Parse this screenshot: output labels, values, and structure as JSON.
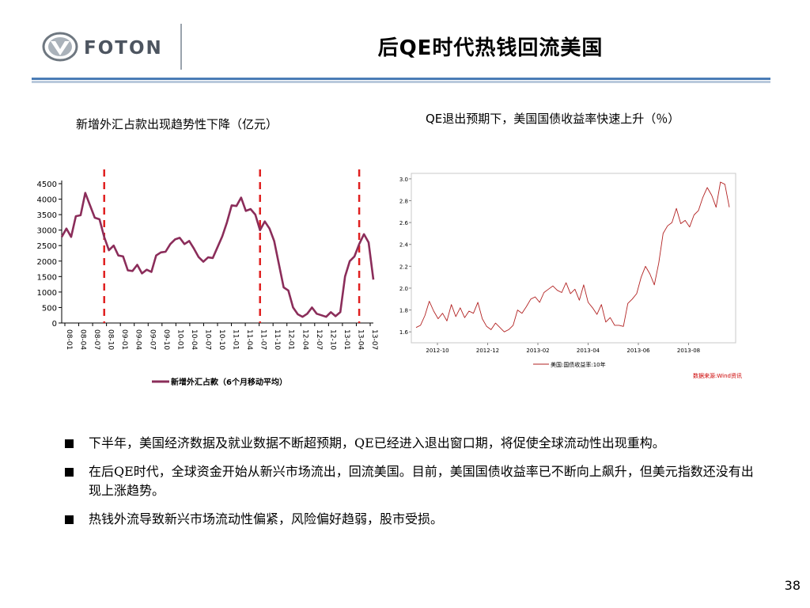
{
  "header": {
    "logo_text": "FOTON",
    "title": "后QE时代热钱回流美国"
  },
  "left_caption": "新增外汇占款出现趋势性下降（亿元）",
  "right_caption": "QE退出预期下，美国国债收益率快速上升（％）",
  "bullets": [
    "下半年，美国经济数据及就业数据不断超预期，QE已经进入退出窗口期，将促使全球流动性出现重构。",
    "在后QE时代，全球资金开始从新兴市场流出，回流美国。目前，美国国债收益率已不断向上飙升，但美元指数还没有出现上涨趋势。",
    "热钱外流导致新兴市场流动性偏紧，风险偏好趋弱，股市受损。"
  ],
  "page_number": "38",
  "colors": {
    "accent_blue": "#4a7cb6",
    "left_series": "#8b2d5a",
    "right_series": "#b22222",
    "marker": "#e02020",
    "source": "#cc0000"
  },
  "chart_data": [
    {
      "type": "line",
      "title": "新增外汇占款出现趋势性下降（亿元）",
      "xlabel": "",
      "ylabel": "",
      "ylim": [
        0,
        4500
      ],
      "yticks": [
        "0",
        "500",
        "1000",
        "1500",
        "2000",
        "2500",
        "3000",
        "3500",
        "4000",
        "4500"
      ],
      "xtick_labels": [
        "08-01",
        "08-04",
        "08-07",
        "08-10",
        "09-01",
        "09-04",
        "09-07",
        "09-10",
        "10-01",
        "10-04",
        "10-07",
        "10-10",
        "11-01",
        "11-04",
        "11-07",
        "11-10",
        "12-01",
        "12-04",
        "12-07",
        "12-10",
        "13-01",
        "13-04",
        "13-07"
      ],
      "legend": "新增外汇占款（6个月移动平均）",
      "legend_position": "bottom",
      "marker_lines_at_index": [
        9,
        42,
        63
      ],
      "series": [
        {
          "name": "新增外汇占款（6个月移动平均）",
          "values": [
            2780,
            3050,
            2780,
            3450,
            3480,
            4200,
            3800,
            3400,
            3350,
            2780,
            2350,
            2500,
            2180,
            2150,
            1700,
            1680,
            1880,
            1600,
            1720,
            1650,
            2180,
            2280,
            2300,
            2550,
            2700,
            2750,
            2550,
            2650,
            2400,
            2130,
            1980,
            2120,
            2100,
            2450,
            2800,
            3250,
            3800,
            3780,
            4050,
            3620,
            3680,
            3500,
            3000,
            3280,
            3050,
            2650,
            1900,
            1150,
            1050,
            500,
            280,
            200,
            300,
            500,
            300,
            250,
            200,
            350,
            220,
            350,
            1500,
            2000,
            2150,
            2550,
            2870,
            2600,
            1400
          ]
        }
      ]
    },
    {
      "type": "line",
      "title": "QE退出预期下，美国国债收益率快速上升（％）",
      "xlabel": "",
      "ylabel": "",
      "ylim": [
        1.5,
        3.05
      ],
      "yticks": [
        "1.6",
        "1.8",
        "2.0",
        "2.2",
        "2.4",
        "2.6",
        "2.8",
        "3.0"
      ],
      "xtick_labels": [
        "2012-10",
        "2012-12",
        "2013-02",
        "2013-04",
        "2013-06",
        "2013-08"
      ],
      "legend": "美国:国债收益率:10年",
      "legend_position": "bottom",
      "source": "数据来源:Wind资讯",
      "series": [
        {
          "name": "美国:国债收益率:10年",
          "values": [
            1.64,
            1.66,
            1.75,
            1.88,
            1.79,
            1.72,
            1.77,
            1.7,
            1.85,
            1.74,
            1.82,
            1.73,
            1.79,
            1.77,
            1.87,
            1.72,
            1.65,
            1.62,
            1.68,
            1.64,
            1.6,
            1.62,
            1.66,
            1.8,
            1.77,
            1.83,
            1.9,
            1.92,
            1.87,
            1.96,
            1.99,
            2.02,
            1.98,
            1.96,
            2.05,
            1.95,
            1.99,
            1.89,
            2.03,
            1.87,
            1.82,
            1.76,
            1.85,
            1.69,
            1.73,
            1.66,
            1.66,
            1.65,
            1.86,
            1.9,
            1.95,
            2.1,
            2.2,
            2.13,
            2.03,
            2.23,
            2.5,
            2.57,
            2.6,
            2.73,
            2.59,
            2.62,
            2.56,
            2.67,
            2.71,
            2.83,
            2.92,
            2.85,
            2.74,
            2.97,
            2.95,
            2.74
          ]
        }
      ]
    }
  ]
}
